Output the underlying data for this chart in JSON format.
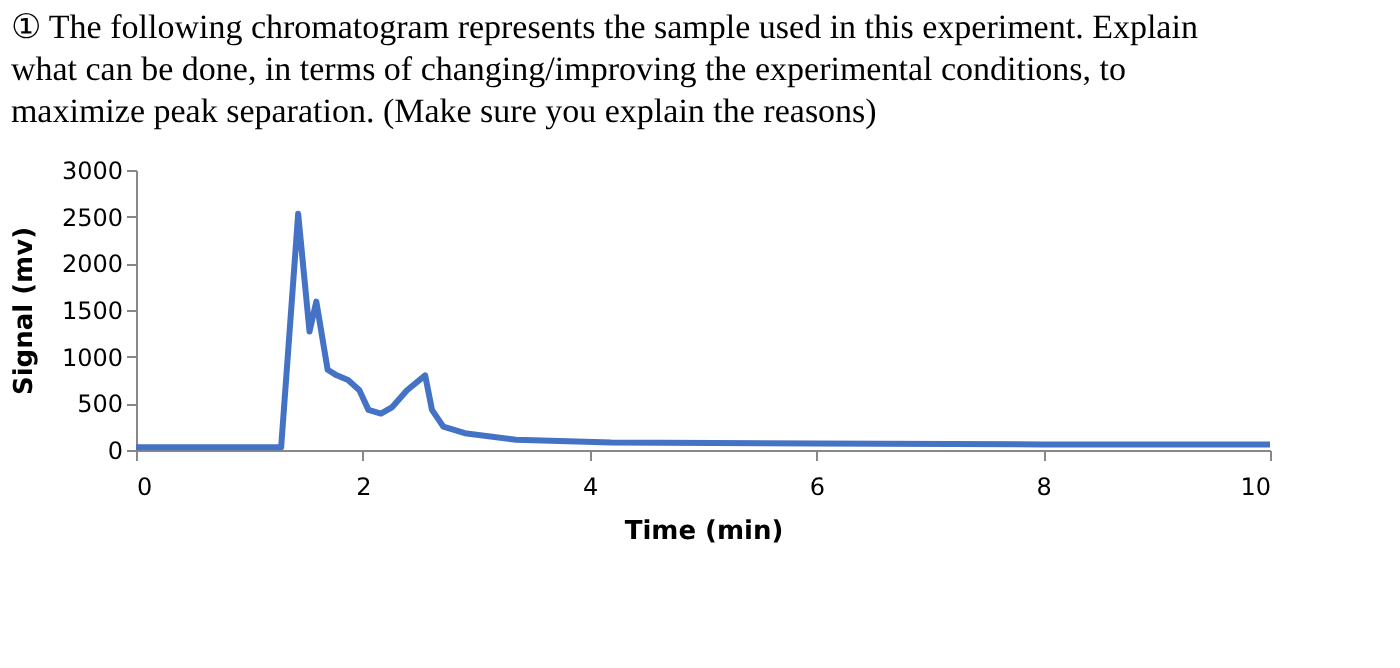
{
  "chart_data": {
    "type": "line",
    "title": [
      "① The following chromatogram represents the sample used in this experiment. Explain",
      "what can be done, in terms of changing/improving the experimental conditions, to",
      "maximize peak separation. (Make sure you explain the reasons)"
    ],
    "xlabel": "Time  (min)",
    "ylabel": "Signal (mv)",
    "xlim": [
      0,
      10
    ],
    "xticks": [
      0,
      2,
      4,
      6,
      8,
      10
    ],
    "ylim": [
      0,
      3000
    ],
    "yticks": [
      0,
      500,
      1000,
      1500,
      2000,
      2500,
      3000
    ],
    "grid": false,
    "legend": false,
    "marker": "none",
    "line_style": "solid",
    "series": [
      {
        "color": "#4472c4",
        "x": [
          0,
          1.28,
          1.43,
          1.53,
          1.59,
          1.69,
          1.77,
          1.87,
          1.97,
          2.05,
          2.16,
          2.26,
          2.39,
          2.55,
          2.61,
          2.71,
          2.9,
          3.35,
          4.19,
          6,
          8,
          10
        ],
        "values": [
          30,
          30,
          2530,
          1270,
          1590,
          860,
          800,
          750,
          640,
          430,
          390,
          460,
          640,
          800,
          430,
          250,
          180,
          110,
          80,
          70,
          60,
          60
        ]
      }
    ]
  }
}
